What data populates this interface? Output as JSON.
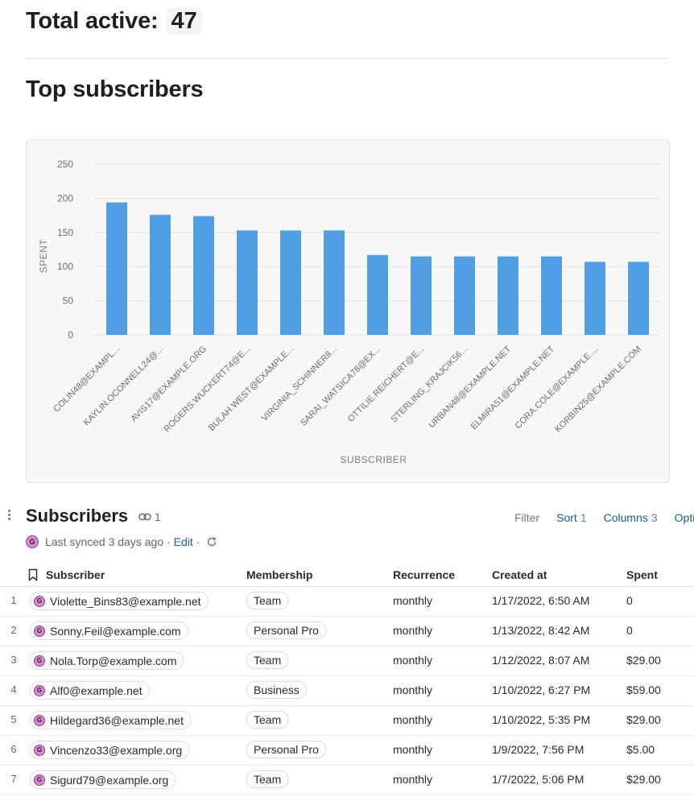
{
  "summary": {
    "label": "Total active:",
    "value": "47"
  },
  "top_section": {
    "title": "Top subscribers"
  },
  "chart_data": {
    "type": "bar",
    "categories": [
      "COLIN48@EXAMPL...",
      "KAYLIN.OCONNELL24@...",
      "AVIS17@EXAMPLE.ORG",
      "ROGERS.WUCKERT74@E...",
      "BULAH.WEST@EXAMPLE...",
      "VIRGINIA_SCHINNER8...",
      "SARAI_WATSICA78@EX...",
      "OTTILIE.REICHERT@E...",
      "STERLING_KRAJCIK56...",
      "URBAN48@EXAMPLE.NET",
      "ELMIRA51@EXAMPLE.NET",
      "CORA.COLE@EXAMPLE....",
      "KORBIN25@EXAMPLE.COM"
    ],
    "values": [
      194,
      176,
      174,
      153,
      153,
      153,
      117,
      115,
      115,
      115,
      115,
      107,
      107
    ],
    "ylim": [
      0,
      250
    ],
    "yticks": [
      0,
      50,
      100,
      150,
      200,
      250
    ],
    "xlabel": "SUBSCRIBER",
    "ylabel": "SPENT",
    "grid": true,
    "bar_color": "#509ee3"
  },
  "subscribers": {
    "title": "Subscribers",
    "link_count": "1",
    "sync_text": "Last synced 3 days ago ·",
    "edit_label": "Edit",
    "sep": "·",
    "toolbar": {
      "filter": "Filter",
      "sort": "Sort",
      "sort_count": "1",
      "columns": "Columns",
      "columns_count": "3",
      "options": "Options"
    },
    "columns": [
      "Subscriber",
      "Membership",
      "Recurrence",
      "Created at",
      "Spent"
    ],
    "rows": [
      {
        "n": "1",
        "email": "Violette_Bins83@example.net",
        "membership": "Team",
        "recurrence": "monthly",
        "created": "1/17/2022, 6:50 AM",
        "spent": "0"
      },
      {
        "n": "2",
        "email": "Sonny.Feil@example.com",
        "membership": "Personal Pro",
        "recurrence": "monthly",
        "created": "1/13/2022, 8:42 AM",
        "spent": "0"
      },
      {
        "n": "3",
        "email": "Nola.Torp@example.com",
        "membership": "Team",
        "recurrence": "monthly",
        "created": "1/12/2022, 8:07 AM",
        "spent": "$29.00"
      },
      {
        "n": "4",
        "email": "Alf0@example.net",
        "membership": "Business",
        "recurrence": "monthly",
        "created": "1/10/2022, 6:27 PM",
        "spent": "$59.00"
      },
      {
        "n": "5",
        "email": "Hildegard36@example.net",
        "membership": "Team",
        "recurrence": "monthly",
        "created": "1/10/2022, 5:35 PM",
        "spent": "$29.00"
      },
      {
        "n": "6",
        "email": "Vincenzo33@example.org",
        "membership": "Personal Pro",
        "recurrence": "monthly",
        "created": "1/9/2022, 7:56 PM",
        "spent": "$5.00"
      },
      {
        "n": "7",
        "email": "Sigurd79@example.org",
        "membership": "Team",
        "recurrence": "monthly",
        "created": "1/7/2022, 5:06 PM",
        "spent": "$29.00"
      }
    ]
  },
  "icons": {
    "avatar": "G",
    "link": "link-icon",
    "bookmark": "bookmark-icon",
    "refresh": "refresh-icon",
    "drag": "drag-handle-icon"
  }
}
